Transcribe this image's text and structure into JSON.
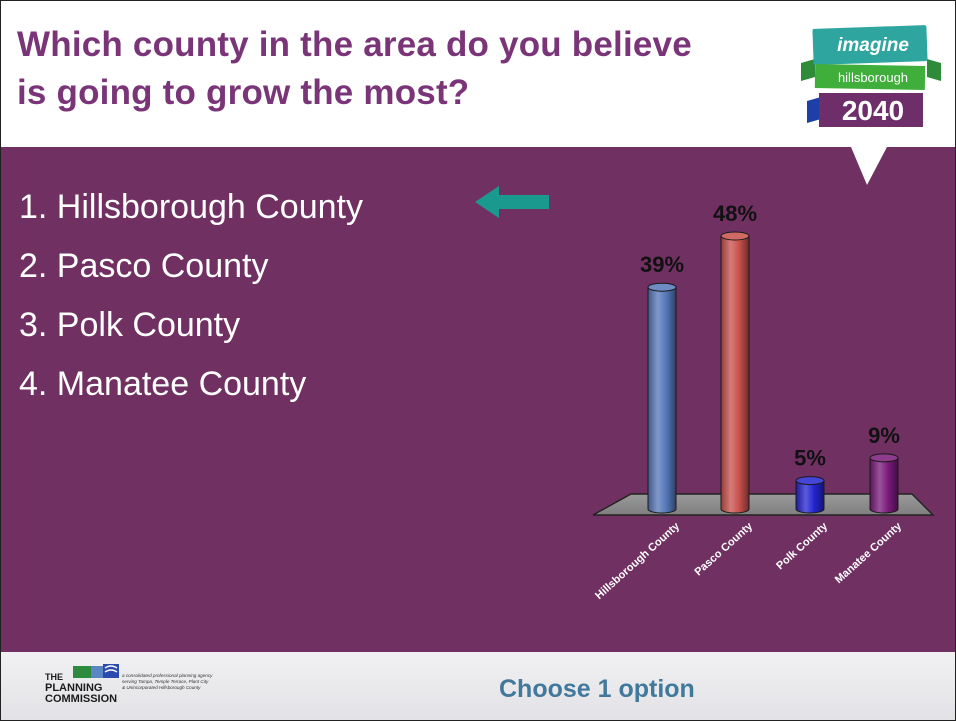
{
  "slide": {
    "title_line1": "Which county in the area do you believe",
    "title_line2": "is going to grow the most?",
    "footer_text": "Choose 1 option",
    "colors": {
      "band": "#703062",
      "title": "#7a3579",
      "footer_text": "#41799c",
      "arrow": "#1a9a8e"
    }
  },
  "options": [
    "1. Hillsborough County",
    "2. Pasco County",
    "3. Polk County",
    "4. Manatee County"
  ],
  "highlighted_option": 0,
  "logo": {
    "word1": "imagine",
    "word2": "hillsborough",
    "year": "2040"
  },
  "planning_commission": {
    "name_line1": "THE",
    "name_line2": "PLANNING",
    "name_line3": "COMMISSION",
    "tagline1": "a consolidated professional planning agency",
    "tagline2": "serving Tampa, Temple Terrace, Plant City",
    "tagline3": "& Unincorporated Hillsborough County"
  },
  "chart_data": {
    "type": "bar",
    "categories": [
      "Hillsborough County",
      "Pasco County",
      "Polk County",
      "Manatee County"
    ],
    "values": [
      39,
      48,
      5,
      9
    ],
    "value_labels": [
      "39%",
      "48%",
      "5%",
      "9%"
    ],
    "colors": [
      "#5577b8",
      "#c8504c",
      "#2424d0",
      "#7a1a7a"
    ],
    "ylim": [
      0,
      48
    ],
    "grid": false,
    "legend": "none",
    "title": "",
    "xlabel": "",
    "ylabel": ""
  }
}
